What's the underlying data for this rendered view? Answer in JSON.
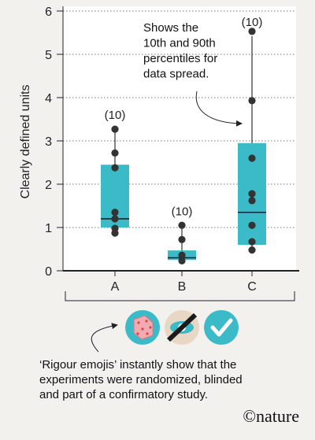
{
  "chart_data": {
    "type": "box",
    "ylabel": "Clearly defined units",
    "ylim": [
      0,
      6
    ],
    "yticks": [
      0,
      1,
      2,
      3,
      4,
      5,
      6
    ],
    "categories": [
      "A",
      "B",
      "C"
    ],
    "grid": true,
    "boxes": [
      {
        "category": "A",
        "count_label": "(10)",
        "q1": 1.0,
        "median": 1.2,
        "q3": 2.45,
        "whisker_low": 0.85,
        "whisker_high": 3.27,
        "points": [
          0.87,
          0.98,
          1.2,
          1.35,
          2.38,
          2.72,
          3.27
        ]
      },
      {
        "category": "B",
        "count_label": "(10)",
        "q1": 0.25,
        "median": 0.3,
        "q3": 0.47,
        "whisker_low": 0.22,
        "whisker_high": 1.05,
        "points": [
          0.23,
          0.36,
          0.72,
          1.05
        ]
      },
      {
        "category": "C",
        "count_label": "(10)",
        "q1": 0.6,
        "median": 1.35,
        "q3": 2.95,
        "whisker_low": 0.48,
        "whisker_high": 5.42,
        "points": [
          0.48,
          0.67,
          1.05,
          1.62,
          1.78,
          2.6,
          3.93,
          5.53
        ]
      }
    ],
    "annotation": [
      "Shows the",
      "10th and 90th",
      "percentiles for",
      "data spread."
    ]
  },
  "colors": {
    "box": "#3bbac8",
    "point": "#333333",
    "grid": "#777777",
    "bg": "#f3f1ee"
  },
  "icons": [
    "dice-icon",
    "blinded-eye-icon",
    "checkmark-icon"
  ],
  "caption": {
    "lines": [
      "‘Rigour emojis’ instantly show that the",
      "experiments were randomized, blinded",
      "and part of a confirmatory study."
    ]
  },
  "brand": {
    "text": "©nature"
  }
}
